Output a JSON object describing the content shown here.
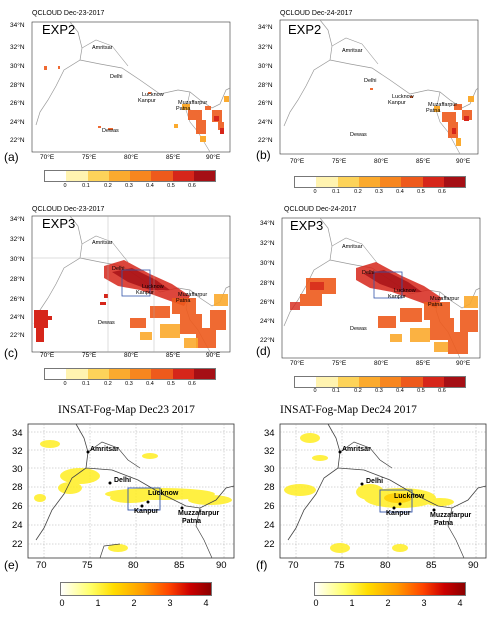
{
  "panels": {
    "a": {
      "title": "QCLOUD Dec-23-2017",
      "exp": "EXP2",
      "label": "(a)"
    },
    "b": {
      "title": "QCLOUD Dec-24-2017",
      "exp": "EXP2",
      "label": "(b)"
    },
    "c": {
      "title": "QCLOUD Dec-23-2017",
      "exp": "EXP3",
      "label": "(c)"
    },
    "d": {
      "title": "QCLOUD Dec-24-2017",
      "exp": "EXP3",
      "label": "(d)"
    },
    "e": {
      "title": "INSAT-Fog-Map Dec23 2017",
      "label": "(e)"
    },
    "f": {
      "title": "INSAT-Fog-Map Dec24 2017",
      "label": "(f)"
    }
  },
  "wrf_lat_ticks": [
    "34°N",
    "32°N",
    "30°N",
    "28°N",
    "26°N",
    "24°N",
    "22°N"
  ],
  "wrf_lon_ticks": [
    "70°E",
    "75°E",
    "80°E",
    "85°E",
    "90°E"
  ],
  "insat_lat_ticks": [
    "34",
    "32",
    "30",
    "28",
    "26",
    "24",
    "22"
  ],
  "insat_lon_ticks": [
    "70",
    "75",
    "80",
    "85",
    "90"
  ],
  "wrf_cities": [
    "Amritsar",
    "Delhi",
    "Lucknow",
    "Kanpur",
    "Muzaffarpur",
    "Patna",
    "Dewas"
  ],
  "insat_cities": [
    "Amritsar",
    "Delhi",
    "Lucknow",
    "Kanpur",
    "Muzzafarpur",
    "Patna"
  ],
  "qcloud_colorbar": {
    "ticks": [
      "0",
      "0.1",
      "0.2",
      "0.3",
      "0.4",
      "0.5",
      "0.6"
    ],
    "colors": [
      "#ffffff",
      "#fff3b0",
      "#fdd35a",
      "#fbaa2e",
      "#f7861f",
      "#ee5a1c",
      "#d6261a",
      "#a50f15"
    ]
  },
  "insat_colorbar": {
    "ticks": [
      "0",
      "1",
      "2",
      "3",
      "4"
    ],
    "colors": [
      "#ffffff",
      "#ffff66",
      "#ffdd00",
      "#ff9900",
      "#ff4400",
      "#cc0000",
      "#8b0000"
    ]
  },
  "colors": {
    "border": "#888888",
    "fog": "#ffee22",
    "box": "#3355aa"
  }
}
